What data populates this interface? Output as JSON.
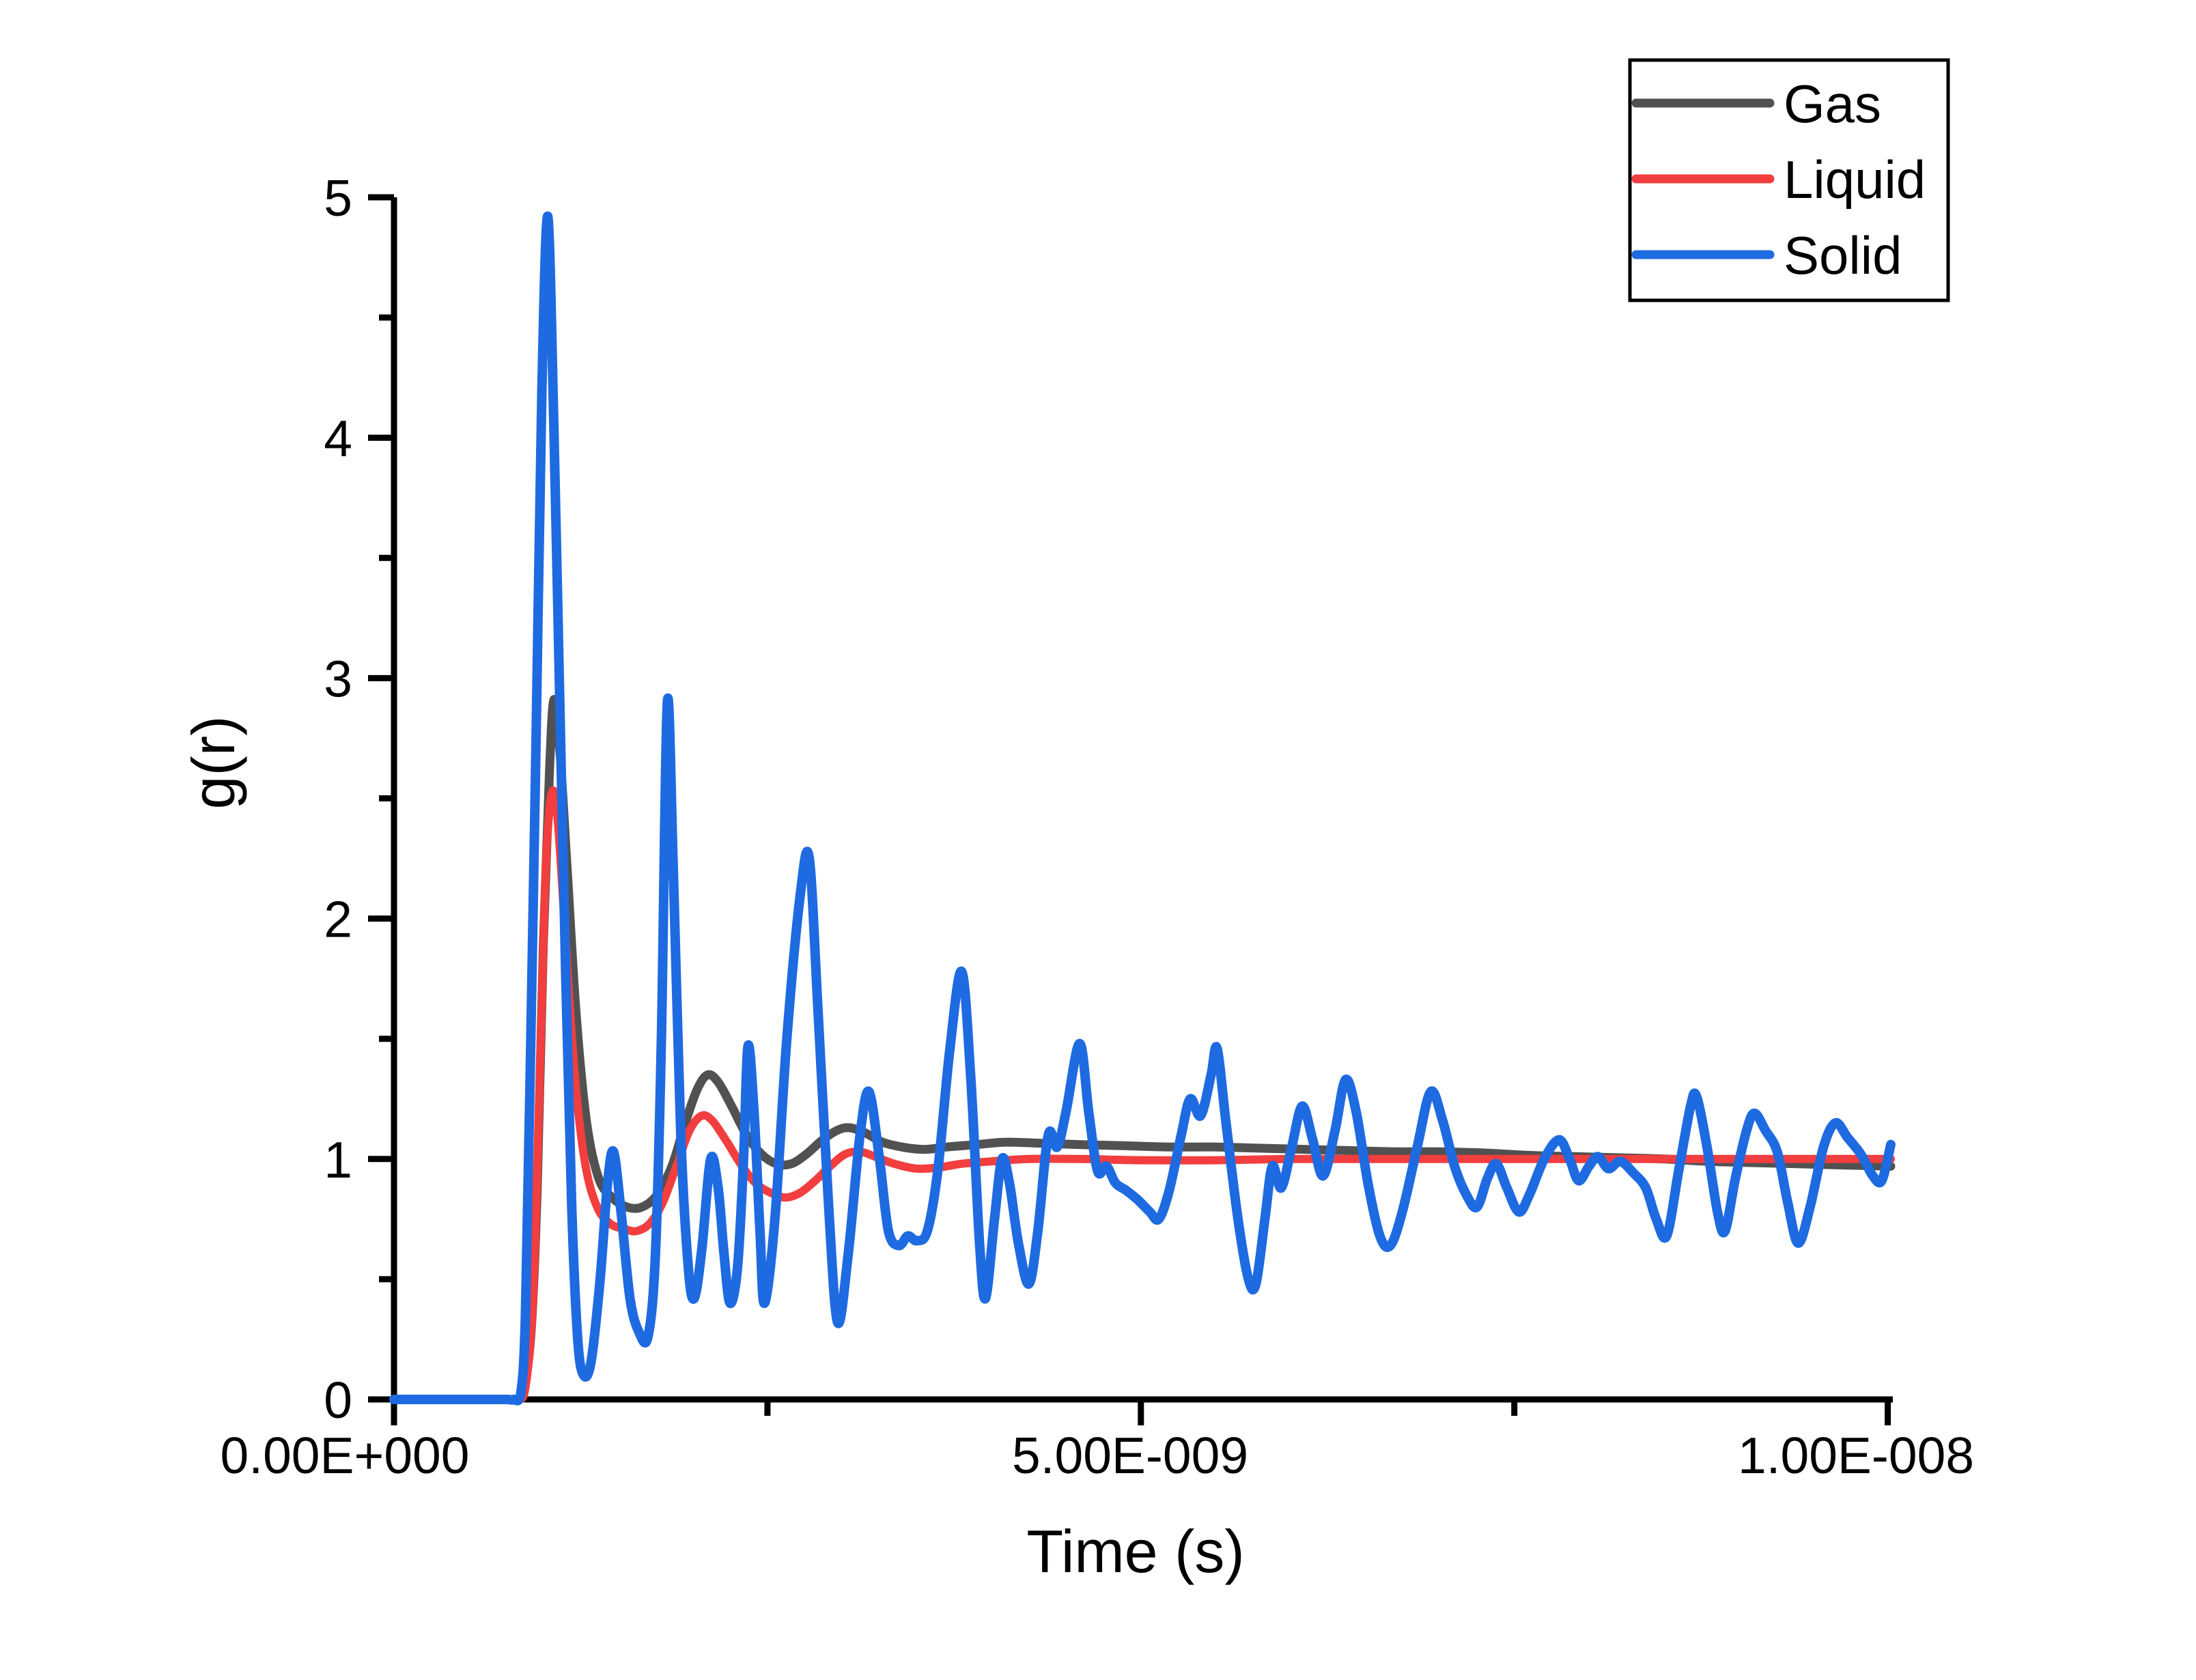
{
  "figure": {
    "background": "#ffffff",
    "axis_color": "#000000"
  },
  "axes": {
    "x": {
      "title": "Time (s)"
    },
    "y": {
      "title": "g(r)"
    }
  },
  "legend": {
    "position": "top-right",
    "entries": [
      {
        "label": "Gas"
      },
      {
        "label": "Liquid"
      },
      {
        "label": "Solid"
      }
    ]
  },
  "chart_data": {
    "type": "line",
    "title": "",
    "xlabel": "Time (s)",
    "ylabel": "g(r)",
    "grid": false,
    "legend_position": "top-right",
    "xlim_s": [
      0,
      1.004e-08
    ],
    "ylim": [
      0,
      5
    ],
    "x_tick_labels": [
      "0.00E+000",
      "5.00E-009",
      "1.00E-008"
    ],
    "x_tick_values_s": [
      0,
      5e-09,
      1e-08
    ],
    "x_minor_tick_values_s": [
      2.5e-09,
      7.5e-09
    ],
    "y_tick_labels": [
      "0",
      "1",
      "2",
      "3",
      "4",
      "5"
    ],
    "y_tick_values": [
      0,
      1,
      2,
      3,
      4,
      5
    ],
    "y_minor_tick_values": [
      0.5,
      1.5,
      2.5,
      3.5,
      4.5
    ],
    "x_unit_note": "series point x values are in units of 1e-9 s (nanoseconds)",
    "series": [
      {
        "name": "Gas",
        "color": "#515151",
        "points": [
          [
            0,
            0
          ],
          [
            0.3,
            0
          ],
          [
            0.55,
            0
          ],
          [
            0.7,
            0
          ],
          [
            0.78,
            0
          ],
          [
            0.82,
            0
          ],
          [
            0.87,
            0.05
          ],
          [
            0.92,
            0.3
          ],
          [
            0.96,
            0.9
          ],
          [
            1.0,
            1.9
          ],
          [
            1.04,
            2.6
          ],
          [
            1.07,
            2.91
          ],
          [
            1.11,
            2.7
          ],
          [
            1.16,
            2.2
          ],
          [
            1.22,
            1.6
          ],
          [
            1.29,
            1.15
          ],
          [
            1.37,
            0.92
          ],
          [
            1.46,
            0.84
          ],
          [
            1.56,
            0.8
          ],
          [
            1.66,
            0.8
          ],
          [
            1.76,
            0.85
          ],
          [
            1.86,
            0.97
          ],
          [
            1.95,
            1.15
          ],
          [
            2.03,
            1.29
          ],
          [
            2.1,
            1.35
          ],
          [
            2.17,
            1.32
          ],
          [
            2.26,
            1.22
          ],
          [
            2.36,
            1.1
          ],
          [
            2.46,
            1.02
          ],
          [
            2.56,
            0.98
          ],
          [
            2.66,
            0.98
          ],
          [
            2.76,
            1.02
          ],
          [
            2.87,
            1.08
          ],
          [
            2.97,
            1.12
          ],
          [
            3.05,
            1.13
          ],
          [
            3.15,
            1.11
          ],
          [
            3.27,
            1.07
          ],
          [
            3.4,
            1.05
          ],
          [
            3.55,
            1.04
          ],
          [
            3.7,
            1.05
          ],
          [
            3.9,
            1.06
          ],
          [
            4.1,
            1.07
          ],
          [
            4.35,
            1.065
          ],
          [
            4.6,
            1.06
          ],
          [
            4.9,
            1.055
          ],
          [
            5.2,
            1.05
          ],
          [
            5.5,
            1.05
          ],
          [
            5.8,
            1.045
          ],
          [
            6.1,
            1.04
          ],
          [
            6.4,
            1.035
          ],
          [
            6.7,
            1.03
          ],
          [
            7.0,
            1.03
          ],
          [
            7.3,
            1.025
          ],
          [
            7.6,
            1.015
          ],
          [
            7.9,
            1.01
          ],
          [
            8.2,
            1.005
          ],
          [
            8.5,
            1.0
          ],
          [
            8.8,
            0.99
          ],
          [
            9.1,
            0.985
          ],
          [
            9.4,
            0.98
          ],
          [
            9.7,
            0.975
          ],
          [
            10.02,
            0.97
          ]
        ]
      },
      {
        "name": "Liquid",
        "color": "#F23E3E",
        "points": [
          [
            0,
            0
          ],
          [
            0.3,
            0
          ],
          [
            0.55,
            0
          ],
          [
            0.72,
            0
          ],
          [
            0.79,
            0
          ],
          [
            0.83,
            0
          ],
          [
            0.88,
            0.05
          ],
          [
            0.93,
            0.4
          ],
          [
            0.97,
            1.2
          ],
          [
            1.01,
            2.1
          ],
          [
            1.04,
            2.45
          ],
          [
            1.07,
            2.53
          ],
          [
            1.1,
            2.38
          ],
          [
            1.15,
            1.9
          ],
          [
            1.21,
            1.35
          ],
          [
            1.28,
            0.98
          ],
          [
            1.36,
            0.8
          ],
          [
            1.45,
            0.73
          ],
          [
            1.54,
            0.71
          ],
          [
            1.62,
            0.7
          ],
          [
            1.71,
            0.73
          ],
          [
            1.8,
            0.82
          ],
          [
            1.89,
            0.97
          ],
          [
            1.98,
            1.12
          ],
          [
            2.06,
            1.18
          ],
          [
            2.13,
            1.16
          ],
          [
            2.22,
            1.08
          ],
          [
            2.32,
            0.98
          ],
          [
            2.42,
            0.9
          ],
          [
            2.52,
            0.86
          ],
          [
            2.62,
            0.84
          ],
          [
            2.72,
            0.86
          ],
          [
            2.82,
            0.91
          ],
          [
            2.92,
            0.97
          ],
          [
            3.02,
            1.02
          ],
          [
            3.12,
            1.03
          ],
          [
            3.22,
            1.01
          ],
          [
            3.35,
            0.98
          ],
          [
            3.5,
            0.96
          ],
          [
            3.65,
            0.965
          ],
          [
            3.8,
            0.98
          ],
          [
            4.0,
            0.99
          ],
          [
            4.25,
            1.0
          ],
          [
            4.6,
            1.0
          ],
          [
            5.0,
            0.995
          ],
          [
            5.5,
            0.995
          ],
          [
            6.0,
            1.0
          ],
          [
            6.5,
            1.0
          ],
          [
            7.0,
            1.0
          ],
          [
            7.5,
            1.0
          ],
          [
            8.0,
            1.0
          ],
          [
            8.5,
            1.0
          ],
          [
            9.0,
            1.0
          ],
          [
            9.5,
            1.0
          ],
          [
            10.02,
            1.0
          ]
        ]
      },
      {
        "name": "Solid",
        "color": "#1E6AE1",
        "points": [
          [
            0,
            0
          ],
          [
            0.3,
            0
          ],
          [
            0.55,
            0
          ],
          [
            0.68,
            0
          ],
          [
            0.76,
            0
          ],
          [
            0.8,
            0
          ],
          [
            0.85,
            0.03
          ],
          [
            0.88,
            0.35
          ],
          [
            0.91,
            1.3
          ],
          [
            0.95,
            2.7
          ],
          [
            0.99,
            4.2
          ],
          [
            1.03,
            4.92
          ],
          [
            1.07,
            4.05
          ],
          [
            1.11,
            2.9
          ],
          [
            1.15,
            1.75
          ],
          [
            1.19,
            0.8
          ],
          [
            1.23,
            0.25
          ],
          [
            1.27,
            0.1
          ],
          [
            1.32,
            0.16
          ],
          [
            1.38,
            0.5
          ],
          [
            1.43,
            0.9
          ],
          [
            1.47,
            1.03
          ],
          [
            1.52,
            0.78
          ],
          [
            1.58,
            0.42
          ],
          [
            1.64,
            0.28
          ],
          [
            1.7,
            0.26
          ],
          [
            1.75,
            0.6
          ],
          [
            1.79,
            1.5
          ],
          [
            1.83,
            2.9
          ],
          [
            1.87,
            2.2
          ],
          [
            1.92,
            1.1
          ],
          [
            1.97,
            0.55
          ],
          [
            2.01,
            0.42
          ],
          [
            2.06,
            0.62
          ],
          [
            2.12,
            1.0
          ],
          [
            2.17,
            0.88
          ],
          [
            2.21,
            0.6
          ],
          [
            2.25,
            0.4
          ],
          [
            2.3,
            0.55
          ],
          [
            2.34,
            1.0
          ],
          [
            2.37,
            1.47
          ],
          [
            2.41,
            1.2
          ],
          [
            2.45,
            0.7
          ],
          [
            2.48,
            0.4
          ],
          [
            2.55,
            0.75
          ],
          [
            2.63,
            1.5
          ],
          [
            2.72,
            2.1
          ],
          [
            2.78,
            2.25
          ],
          [
            2.84,
            1.6
          ],
          [
            2.91,
            0.8
          ],
          [
            2.97,
            0.32
          ],
          [
            3.04,
            0.6
          ],
          [
            3.12,
            1.1
          ],
          [
            3.18,
            1.28
          ],
          [
            3.25,
            1.0
          ],
          [
            3.31,
            0.7
          ],
          [
            3.38,
            0.64
          ],
          [
            3.44,
            0.68
          ],
          [
            3.5,
            0.66
          ],
          [
            3.57,
            0.7
          ],
          [
            3.64,
            0.95
          ],
          [
            3.72,
            1.45
          ],
          [
            3.8,
            1.78
          ],
          [
            3.86,
            1.35
          ],
          [
            3.92,
            0.65
          ],
          [
            3.96,
            0.42
          ],
          [
            4.02,
            0.75
          ],
          [
            4.07,
            1.0
          ],
          [
            4.12,
            0.9
          ],
          [
            4.18,
            0.65
          ],
          [
            4.25,
            0.48
          ],
          [
            4.31,
            0.7
          ],
          [
            4.38,
            1.1
          ],
          [
            4.44,
            1.05
          ],
          [
            4.5,
            1.2
          ],
          [
            4.59,
            1.48
          ],
          [
            4.65,
            1.2
          ],
          [
            4.71,
            0.95
          ],
          [
            4.77,
            0.97
          ],
          [
            4.83,
            0.9
          ],
          [
            4.9,
            0.87
          ],
          [
            4.98,
            0.83
          ],
          [
            5.06,
            0.78
          ],
          [
            5.12,
            0.75
          ],
          [
            5.19,
            0.87
          ],
          [
            5.27,
            1.1
          ],
          [
            5.33,
            1.25
          ],
          [
            5.4,
            1.18
          ],
          [
            5.47,
            1.35
          ],
          [
            5.51,
            1.46
          ],
          [
            5.57,
            1.15
          ],
          [
            5.65,
            0.75
          ],
          [
            5.72,
            0.5
          ],
          [
            5.77,
            0.48
          ],
          [
            5.83,
            0.75
          ],
          [
            5.88,
            0.97
          ],
          [
            5.94,
            0.88
          ],
          [
            6.01,
            1.05
          ],
          [
            6.08,
            1.22
          ],
          [
            6.15,
            1.08
          ],
          [
            6.22,
            0.93
          ],
          [
            6.3,
            1.12
          ],
          [
            6.37,
            1.33
          ],
          [
            6.44,
            1.2
          ],
          [
            6.52,
            0.9
          ],
          [
            6.6,
            0.68
          ],
          [
            6.67,
            0.64
          ],
          [
            6.75,
            0.78
          ],
          [
            6.85,
            1.05
          ],
          [
            6.94,
            1.28
          ],
          [
            7.02,
            1.16
          ],
          [
            7.1,
            0.97
          ],
          [
            7.18,
            0.85
          ],
          [
            7.25,
            0.8
          ],
          [
            7.32,
            0.92
          ],
          [
            7.38,
            0.98
          ],
          [
            7.45,
            0.88
          ],
          [
            7.53,
            0.78
          ],
          [
            7.6,
            0.85
          ],
          [
            7.7,
            1.0
          ],
          [
            7.8,
            1.08
          ],
          [
            7.87,
            1.0
          ],
          [
            7.93,
            0.91
          ],
          [
            8.0,
            0.97
          ],
          [
            8.06,
            1.01
          ],
          [
            8.13,
            0.96
          ],
          [
            8.21,
            0.99
          ],
          [
            8.3,
            0.94
          ],
          [
            8.38,
            0.88
          ],
          [
            8.45,
            0.75
          ],
          [
            8.52,
            0.68
          ],
          [
            8.6,
            0.95
          ],
          [
            8.68,
            1.22
          ],
          [
            8.72,
            1.26
          ],
          [
            8.79,
            1.05
          ],
          [
            8.86,
            0.78
          ],
          [
            8.91,
            0.7
          ],
          [
            8.98,
            0.92
          ],
          [
            9.06,
            1.13
          ],
          [
            9.11,
            1.19
          ],
          [
            9.18,
            1.12
          ],
          [
            9.26,
            1.03
          ],
          [
            9.33,
            0.82
          ],
          [
            9.4,
            0.65
          ],
          [
            9.48,
            0.8
          ],
          [
            9.57,
            1.05
          ],
          [
            9.65,
            1.15
          ],
          [
            9.73,
            1.09
          ],
          [
            9.82,
            1.02
          ],
          [
            9.9,
            0.93
          ],
          [
            9.96,
            0.91
          ],
          [
            10.02,
            1.06
          ]
        ]
      }
    ]
  }
}
